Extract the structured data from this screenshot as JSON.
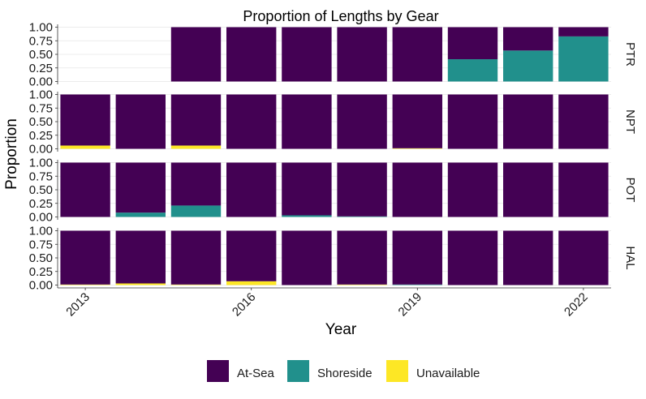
{
  "chart_data": {
    "type": "bar",
    "stacked": true,
    "title": "Proportion of Lengths by Gear",
    "xlabel": "Year",
    "ylabel": "Proportion",
    "x": [
      2013,
      2014,
      2015,
      2016,
      2017,
      2018,
      2019,
      2020,
      2021,
      2022
    ],
    "x_tick_labels": [
      "2013",
      "2016",
      "2019",
      "2022"
    ],
    "y_ticks": [
      "0.00",
      "0.25",
      "0.50",
      "0.75",
      "1.00"
    ],
    "ylim": [
      0,
      1
    ],
    "grid": true,
    "legend": {
      "position": "bottom",
      "entries": [
        {
          "label": "At-Sea",
          "color": "#440154"
        },
        {
          "label": "Shoreside",
          "color": "#21908C"
        },
        {
          "label": "Unavailable",
          "color": "#FDE725"
        }
      ]
    },
    "facets": [
      {
        "label": "PTR",
        "series": [
          {
            "name": "Unavailable",
            "values": [
              null,
              null,
              0,
              0,
              0,
              0,
              0,
              0,
              0,
              0
            ]
          },
          {
            "name": "Shoreside",
            "values": [
              null,
              null,
              0,
              0,
              0,
              0,
              0,
              0.41,
              0.57,
              0.83
            ]
          },
          {
            "name": "At-Sea",
            "values": [
              null,
              null,
              1,
              1,
              1,
              1,
              1,
              0.59,
              0.43,
              0.17
            ]
          }
        ]
      },
      {
        "label": "NPT",
        "series": [
          {
            "name": "Unavailable",
            "values": [
              0.06,
              0,
              0.06,
              0,
              0,
              0,
              0.01,
              0,
              0,
              0
            ]
          },
          {
            "name": "Shoreside",
            "values": [
              0,
              0,
              0,
              0,
              0,
              0,
              0,
              0,
              0,
              0
            ]
          },
          {
            "name": "At-Sea",
            "values": [
              0.94,
              1,
              0.94,
              1,
              1,
              1,
              0.99,
              1,
              1,
              1
            ]
          }
        ]
      },
      {
        "label": "POT",
        "series": [
          {
            "name": "Unavailable",
            "values": [
              0,
              0,
              0,
              0,
              0,
              0,
              0,
              0,
              0,
              0
            ]
          },
          {
            "name": "Shoreside",
            "values": [
              0,
              0.08,
              0.21,
              0,
              0.03,
              0.01,
              0,
              0,
              0,
              0
            ]
          },
          {
            "name": "At-Sea",
            "values": [
              1,
              0.92,
              0.79,
              1,
              0.97,
              0.99,
              1,
              1,
              1,
              1
            ]
          }
        ]
      },
      {
        "label": "HAL",
        "series": [
          {
            "name": "Unavailable",
            "values": [
              0.01,
              0.03,
              0.01,
              0.07,
              0,
              0.01,
              0,
              0,
              0,
              0
            ]
          },
          {
            "name": "Shoreside",
            "values": [
              0,
              0,
              0,
              0,
              0,
              0,
              0.01,
              0,
              0,
              0
            ]
          },
          {
            "name": "At-Sea",
            "values": [
              0.99,
              0.97,
              0.99,
              0.93,
              1,
              0.99,
              0.99,
              1,
              1,
              1
            ]
          }
        ]
      }
    ]
  }
}
